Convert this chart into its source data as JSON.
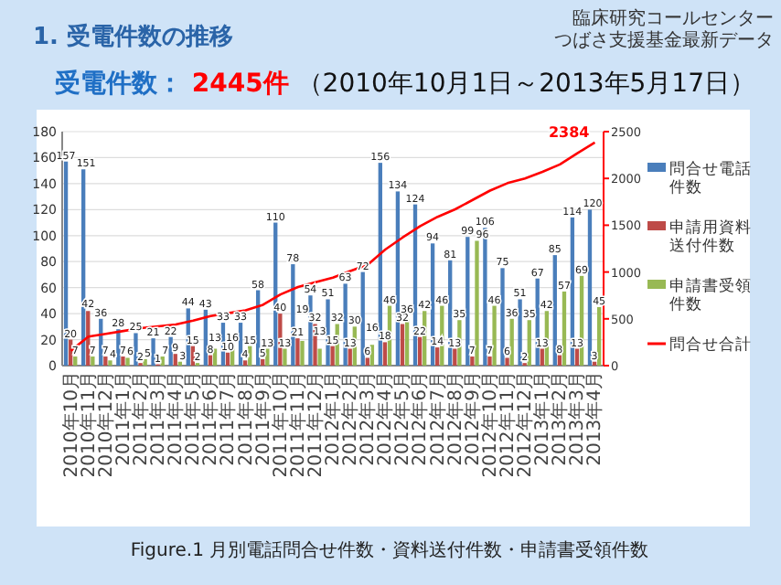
{
  "chart_data": {
    "type": "bar",
    "subtitle": "1. 受電件数の推移",
    "title": "受電件数： 2445件 （2010年10月1日～2013年5月17日）",
    "annotations": [
      "臨床研究コールセンター",
      "つばさ支援基金最新データ",
      "Figure.1 月別電話問合せ件数・資料送付件数・申請書受領件数"
    ],
    "categories": [
      "2010年10月",
      "2010年11月",
      "2010年12月",
      "2011年1月",
      "2011年2月",
      "2011年3月",
      "2011年4月",
      "2011年5月",
      "2011年6月",
      "2011年7月",
      "2011年8月",
      "2011年9月",
      "2011年10月",
      "2011年11月",
      "2011年12月",
      "2012年1月",
      "2012年2月",
      "2012年3月",
      "2012年4月",
      "2012年5月",
      "2012年6月",
      "2012年7月",
      "2012年8月",
      "2012年9月",
      "2012年10月",
      "2012年11月",
      "2012年12月",
      "2013年1月",
      "2013年2月",
      "2013年3月",
      "2013年4月"
    ],
    "series": [
      {
        "name": "問合せ電話件数",
        "color": "#4a7ebb",
        "values": [
          157,
          151,
          36,
          28,
          25,
          21,
          22,
          44,
          43,
          33,
          33,
          58,
          110,
          78,
          54,
          51,
          63,
          72,
          156,
          134,
          124,
          94,
          81,
          99,
          106,
          75,
          51,
          67,
          85,
          114,
          120
        ]
      },
      {
        "name": "申請用資料送付件数",
        "color": "#be4b48",
        "values": [
          20,
          42,
          7,
          7,
          2,
          1,
          9,
          15,
          8,
          10,
          4,
          5,
          40,
          21,
          32,
          15,
          13,
          6,
          18,
          32,
          22,
          14,
          13,
          7,
          7,
          6,
          2,
          13,
          8,
          13,
          3
        ]
      },
      {
        "name": "申請書受領件数",
        "color": "#98b954",
        "values": [
          7,
          7,
          4,
          6,
          5,
          7,
          3,
          2,
          13,
          16,
          15,
          13,
          13,
          19,
          13,
          32,
          30,
          16,
          46,
          36,
          42,
          46,
          35,
          96,
          46,
          36,
          35,
          42,
          57,
          69,
          45
        ]
      },
      {
        "name": "問合せ合計",
        "type": "line",
        "axis": "y2",
        "color": "#ff0000",
        "values": [
          160,
          310,
          340,
          370,
          400,
          420,
          440,
          480,
          530,
          560,
          590,
          650,
          760,
          840,
          890,
          940,
          1010,
          1080,
          1240,
          1370,
          1490,
          1590,
          1670,
          1770,
          1870,
          1950,
          2000,
          2070,
          2150,
          2270,
          2384
        ],
        "value_labels": [
          null,
          null,
          null,
          null,
          null,
          null,
          null,
          null,
          null,
          null,
          null,
          null,
          null,
          null,
          null,
          null,
          null,
          null,
          null,
          null,
          null,
          null,
          null,
          null,
          null,
          null,
          null,
          null,
          null,
          null,
          "2384"
        ]
      }
    ],
    "data_labels": true,
    "ylim": [
      0,
      180
    ],
    "yticks": [
      0,
      20,
      40,
      60,
      80,
      100,
      120,
      140,
      160,
      180
    ],
    "y2lim": [
      0,
      2500
    ],
    "y2ticks": [
      0,
      500,
      1000,
      1500,
      2000,
      2500
    ],
    "grid": "y",
    "legend": "right"
  }
}
